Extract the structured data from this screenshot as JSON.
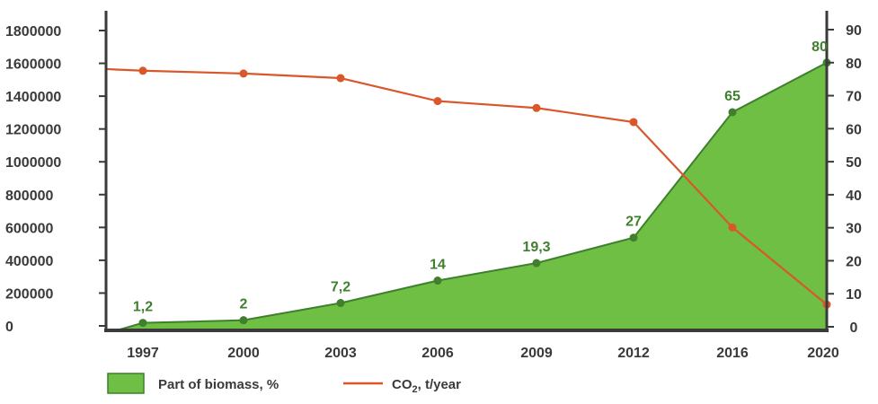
{
  "chart_data": {
    "type": "line",
    "categories": [
      "1997",
      "2000",
      "2003",
      "2006",
      "2009",
      "2012",
      "2016",
      "2020"
    ],
    "series": [
      {
        "name": "Part of biomass, %",
        "kind": "area",
        "axis": "right",
        "values": [
          1.2,
          2,
          7.2,
          14,
          19.3,
          27,
          65,
          80
        ],
        "value_labels": [
          "1,2",
          "2",
          "7,2",
          "14",
          "19,3",
          "27",
          "65",
          "80"
        ],
        "color": "#6fbf44",
        "line_color": "#3f7f2e"
      },
      {
        "name_main": "CO",
        "name_sub": "2",
        "name_suffix": ", t/year",
        "kind": "line",
        "axis": "left",
        "values": [
          1555000,
          1538000,
          1510000,
          1370000,
          1328000,
          1242000,
          600000,
          130000
        ],
        "start_value": 1565000,
        "color": "#d9572b"
      }
    ],
    "y_left": {
      "min": 0,
      "max": 1800000,
      "ticks": [
        0,
        200000,
        400000,
        600000,
        800000,
        1000000,
        1200000,
        1400000,
        1600000,
        1800000
      ]
    },
    "y_right": {
      "min": 0,
      "max": 90,
      "ticks": [
        0,
        10,
        20,
        30,
        40,
        50,
        60,
        70,
        80,
        90
      ]
    },
    "legend_position": "bottom-left",
    "grid": false
  }
}
